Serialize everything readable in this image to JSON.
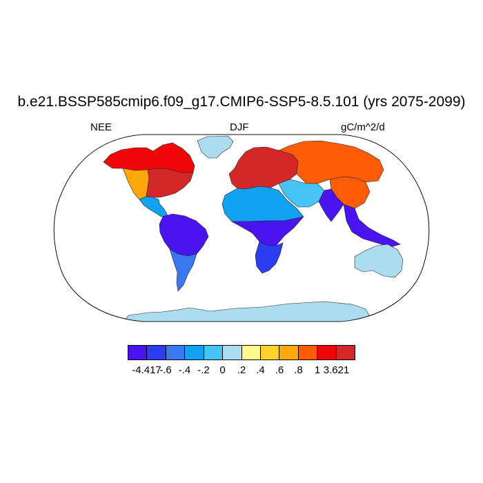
{
  "title": "b.e21.BSSP585cmip6.f09_g17.CMIP6-SSP5-8.5.101 (yrs 2075-2099)",
  "left_label": "NEE",
  "center_label": "DJF",
  "right_label": "gC/m^2/d",
  "colorbar": {
    "colors": [
      "#4a14f0",
      "#2a3ef0",
      "#3a78f2",
      "#12a2f4",
      "#46c4f6",
      "#acdcf0",
      "#fef68e",
      "#fed228",
      "#fea60a",
      "#fe5c06",
      "#f00606",
      "#d42828"
    ],
    "tick_labels": [
      "-4.417",
      "-.6",
      "-.4",
      "-.2",
      "0",
      ".2",
      ".4",
      ".6",
      ".8",
      "1",
      "3.621"
    ]
  },
  "map": {
    "projection": "Robinson",
    "ocean_color": "#ffffff",
    "regions": [
      {
        "name": "north-america-north",
        "level": 10
      },
      {
        "name": "north-america-east",
        "level": 11
      },
      {
        "name": "north-america-west",
        "level": 8
      },
      {
        "name": "greenland",
        "level": 5
      },
      {
        "name": "central-america",
        "level": 3
      },
      {
        "name": "amazon",
        "level": 0
      },
      {
        "name": "south-america-south",
        "level": 2
      },
      {
        "name": "europe",
        "level": 11
      },
      {
        "name": "siberia",
        "level": 9
      },
      {
        "name": "sahara",
        "level": 3
      },
      {
        "name": "central-africa",
        "level": 0
      },
      {
        "name": "southern-africa",
        "level": 1
      },
      {
        "name": "middle-east",
        "level": 4
      },
      {
        "name": "india",
        "level": 0
      },
      {
        "name": "east-asia",
        "level": 9
      },
      {
        "name": "southeast-asia",
        "level": 0
      },
      {
        "name": "australia",
        "level": 5
      },
      {
        "name": "antarctica",
        "level": 5
      }
    ]
  }
}
